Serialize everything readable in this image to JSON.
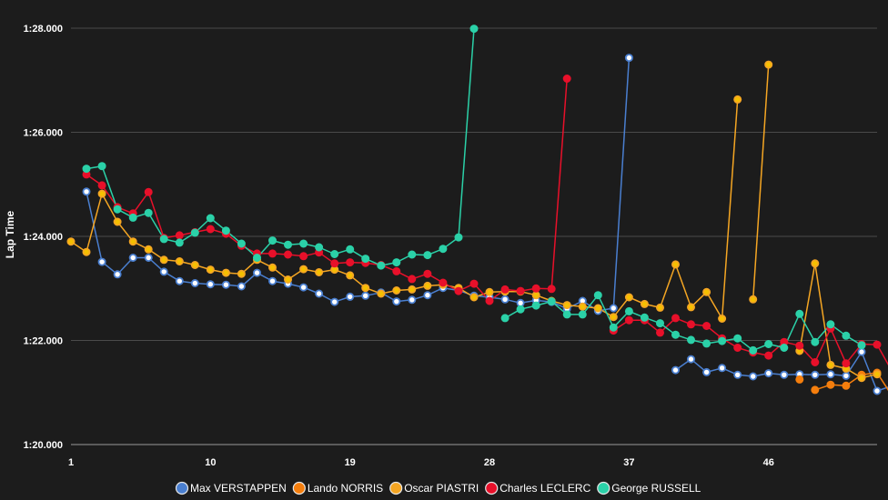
{
  "chart_data": {
    "type": "line",
    "ylabel": "Lap Time",
    "xlabel": "",
    "x_ticks": [
      "1",
      "10",
      "19",
      "28",
      "37",
      "46"
    ],
    "xlim": [
      1,
      53
    ],
    "y_ticks": [
      {
        "value": 80,
        "label": "1:20.000"
      },
      {
        "value": 82,
        "label": "1:22.000"
      },
      {
        "value": 84,
        "label": "1:24.000"
      },
      {
        "value": 86,
        "label": "1:26.000"
      },
      {
        "value": 88,
        "label": "1:28.000"
      }
    ],
    "ylim": [
      80,
      88
    ],
    "grid": "horizontal",
    "legend": "bottom",
    "series": [
      {
        "name": "Max VERSTAPPEN",
        "color": "#4a7fd0",
        "marker": "#ffffff",
        "segments": [
          {
            "start": 2,
            "values": [
              84.86,
              83.51,
              83.27,
              83.59,
              83.59,
              83.32,
              83.14,
              83.1,
              83.08,
              83.07,
              83.04,
              83.3,
              83.14,
              83.09,
              83.02,
              82.9,
              82.74,
              82.84,
              82.86,
              82.92,
              82.75,
              82.78,
              82.87,
              83.01,
              82.96,
              82.86,
              82.83,
              82.79,
              82.72,
              82.77,
              82.74,
              82.61,
              82.76,
              82.57,
              82.62,
              87.43
            ]
          },
          {
            "start": 40,
            "values": [
              81.43,
              81.64,
              81.39,
              81.47,
              81.34,
              81.31,
              81.37,
              81.34,
              81.35,
              81.34,
              81.35,
              81.32,
              81.78,
              81.03,
              81.13
            ]
          }
        ]
      },
      {
        "name": "Lando NORRIS",
        "color": "#f57e0d",
        "marker": "#f57e0d",
        "segments": [
          {
            "start": 48,
            "values": [
              81.25
            ]
          },
          {
            "start": 49,
            "values": [
              81.05,
              81.15,
              81.13,
              81.34,
              81.38,
              80.92
            ]
          }
        ]
      },
      {
        "name": "Oscar PIASTRI",
        "color": "#f5a623",
        "marker": "#f5c000",
        "segments": [
          {
            "start": 1,
            "values": [
              83.9,
              83.7,
              84.82,
              84.28,
              83.9,
              83.75,
              83.55,
              83.52,
              83.45,
              83.36,
              83.3,
              83.28,
              83.55,
              83.4,
              83.17,
              83.37,
              83.31,
              83.36,
              83.25,
              83.01,
              82.9,
              82.96,
              82.98,
              83.05,
              83.07,
              83.01,
              82.83,
              82.93,
              82.94,
              82.94,
              82.87,
              82.76,
              82.68,
              82.65,
              82.62,
              82.45,
              82.83,
              82.7,
              82.63,
              83.46,
              82.64,
              82.93,
              82.42,
              86.63
            ]
          },
          {
            "start": 45,
            "values": [
              82.79,
              87.3
            ]
          },
          {
            "start": 48,
            "values": [
              81.8,
              83.48,
              81.53,
              81.46,
              81.28,
              81.35
            ]
          }
        ]
      },
      {
        "name": "Charles LECLERC",
        "color": "#e8102a",
        "marker": "#e8102a",
        "segments": [
          {
            "start": 2,
            "values": [
              85.19,
              84.98,
              84.56,
              84.44,
              84.85,
              83.97,
              84.02,
              84.08,
              84.14,
              84.05,
              83.82,
              83.67,
              83.67,
              83.65,
              83.62,
              83.69,
              83.48,
              83.5,
              83.49,
              83.45,
              83.33,
              83.18,
              83.28,
              83.11,
              82.95,
              83.09,
              82.76,
              82.98,
              82.95,
              83.0,
              82.99,
              87.03
            ]
          },
          {
            "start": 36,
            "values": [
              82.19,
              82.39,
              82.39,
              82.15,
              82.43,
              82.31,
              82.28,
              82.04,
              81.86,
              81.77,
              81.71,
              81.97,
              81.9,
              81.58,
              82.23,
              81.56,
              81.93,
              81.92,
              81.39
            ]
          }
        ]
      },
      {
        "name": "George RUSSELL",
        "color": "#2bd1a8",
        "marker": "#2bd1a8",
        "segments": [
          {
            "start": 2,
            "values": [
              85.3,
              85.35,
              84.52,
              84.36,
              84.45,
              83.95,
              83.88,
              84.07,
              84.35,
              84.11,
              83.86,
              83.59,
              83.92,
              83.84,
              83.86,
              83.79,
              83.66,
              83.75,
              83.57,
              83.44,
              83.5,
              83.65,
              83.64,
              83.76,
              83.98,
              87.99
            ]
          },
          {
            "start": 29,
            "values": [
              82.43,
              82.6,
              82.67,
              82.75,
              82.5,
              82.5,
              82.87,
              82.25,
              82.56,
              82.44,
              82.33,
              82.11,
              82.01,
              81.94,
              81.99,
              82.04,
              81.81,
              81.93,
              81.86,
              82.51,
              81.97,
              82.31,
              82.09,
              81.91
            ]
          }
        ]
      }
    ]
  }
}
